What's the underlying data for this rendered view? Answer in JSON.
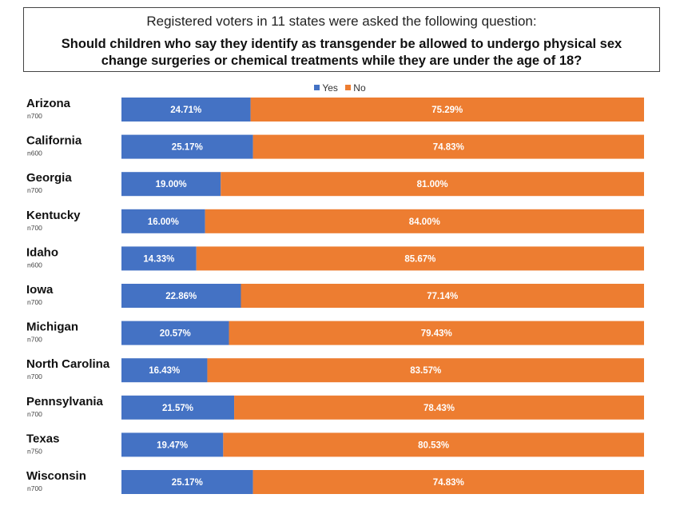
{
  "title": {
    "line1": "Registered voters in 11 states were asked the following question:",
    "line2": "Should children who say they identify as transgender be allowed to undergo physical sex change surgeries or chemical treatments while they are under the age of 18?"
  },
  "colors": {
    "yes": "#4472C4",
    "no": "#ED7D31"
  },
  "chart_data": {
    "type": "bar",
    "orientation": "horizontal",
    "stacked": true,
    "categories": [
      "Arizona",
      "California",
      "Georgia",
      "Kentucky",
      "Idaho",
      "Iowa",
      "Michigan",
      "North Carolina",
      "Pennsylvania",
      "Texas",
      "Wisconsin"
    ],
    "sample_sizes": [
      "n700",
      "n600",
      "n700",
      "n700",
      "n600",
      "n700",
      "n700",
      "n700",
      "n700",
      "n750",
      "n700"
    ],
    "series": [
      {
        "name": "Yes",
        "values": [
          24.71,
          25.17,
          19.0,
          16.0,
          14.33,
          22.86,
          20.57,
          16.43,
          21.57,
          19.47,
          25.17
        ],
        "labels": [
          "24.71%",
          "25.17%",
          "19.00%",
          "16.00%",
          "14.33%",
          "22.86%",
          "20.57%",
          "16.43%",
          "21.57%",
          "19.47%",
          "25.17%"
        ]
      },
      {
        "name": "No",
        "values": [
          75.29,
          74.83,
          81.0,
          84.0,
          85.67,
          77.14,
          79.43,
          83.57,
          78.43,
          80.53,
          74.83
        ],
        "labels": [
          "75.29%",
          "74.83%",
          "81.00%",
          "84.00%",
          "85.67%",
          "77.14%",
          "79.43%",
          "83.57%",
          "78.43%",
          "80.53%",
          "74.83%"
        ]
      }
    ],
    "xlim": [
      0,
      100
    ],
    "legend": "top-center",
    "grid": false
  }
}
